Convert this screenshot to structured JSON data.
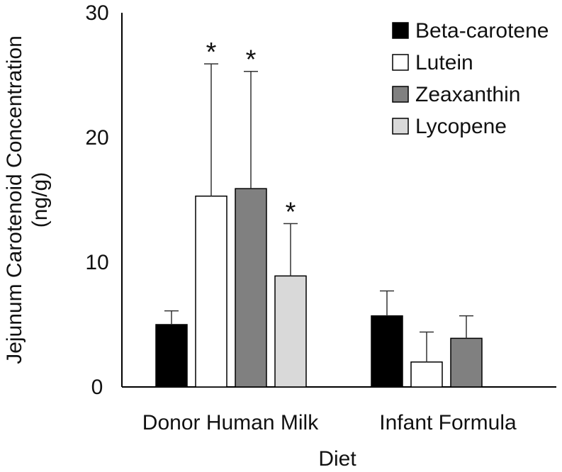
{
  "chart_data": {
    "type": "bar",
    "title": "",
    "xlabel": "Diet",
    "ylabel_line1": "Jejunum  Carotenoid Concentration",
    "ylabel_line2": "(ng/g)",
    "ylim": [
      0,
      30
    ],
    "yticks": [
      0,
      10,
      20,
      30
    ],
    "grid": false,
    "legend_position": "top-right",
    "categories": [
      "Donor Human Milk",
      "Infant Formula"
    ],
    "series": [
      {
        "name": "Beta-carotene",
        "color": "#000000",
        "values": [
          5.0,
          5.7
        ],
        "errors": [
          1.1,
          2.0
        ],
        "significance": [
          "",
          ""
        ]
      },
      {
        "name": "Lutein",
        "color": "#ffffff",
        "values": [
          15.3,
          2.0
        ],
        "errors": [
          10.6,
          2.4
        ],
        "significance": [
          "*",
          ""
        ]
      },
      {
        "name": "Zeaxanthin",
        "color": "#808080",
        "values": [
          15.9,
          3.9
        ],
        "errors": [
          9.4,
          1.8
        ],
        "significance": [
          "*",
          ""
        ]
      },
      {
        "name": "Lycopene",
        "color": "#d9d9d9",
        "values": [
          8.9,
          null
        ],
        "errors": [
          4.2,
          null
        ],
        "significance": [
          "*",
          ""
        ]
      }
    ]
  }
}
